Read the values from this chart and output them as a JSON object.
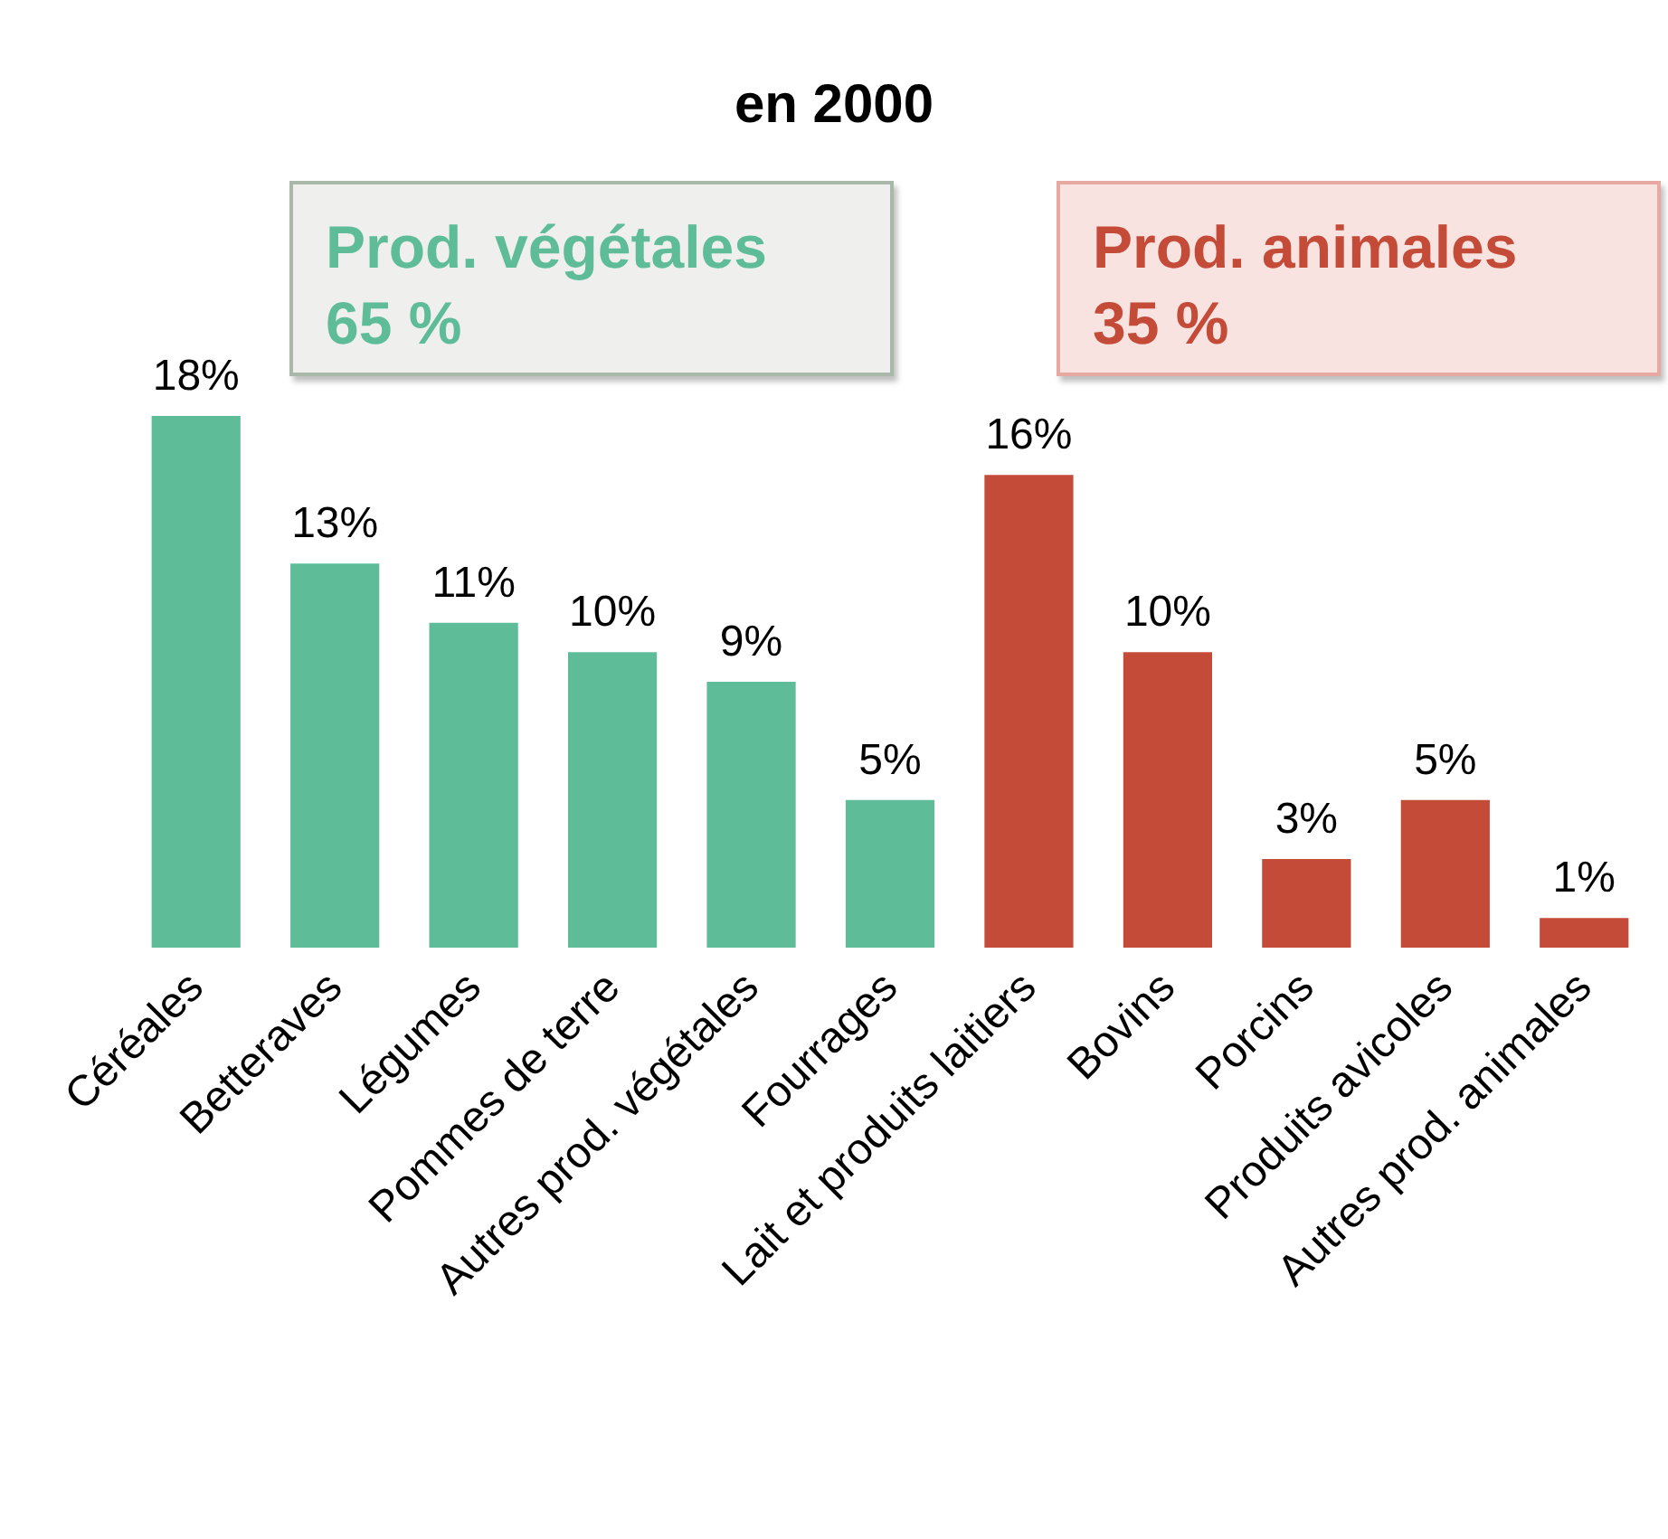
{
  "chart_data": {
    "type": "bar",
    "title": "en 2000",
    "categories": [
      "Céréales",
      "Betteraves",
      "Légumes",
      "Pommes de terre",
      "Autres prod. végétales",
      "Fourrages",
      "Lait et produits laitiers",
      "Bovins",
      "Porcins",
      "Produits avicoles",
      "Autres prod. animales"
    ],
    "values": [
      18,
      13,
      11,
      10,
      9,
      5,
      16,
      10,
      3,
      5,
      1
    ],
    "value_labels": [
      "18%",
      "13%",
      "11%",
      "10%",
      "9%",
      "5%",
      "16%",
      "10%",
      "3%",
      "5%",
      "1%"
    ],
    "colors": [
      "#5ebd98",
      "#5ebd98",
      "#5ebd98",
      "#5ebd98",
      "#5ebd98",
      "#5ebd98",
      "#c44b38",
      "#c44b38",
      "#c44b38",
      "#c44b38",
      "#c44b38"
    ],
    "annotations": [
      "Prod. végétales\n65 %",
      "Prod. animales\n35 %"
    ]
  }
}
